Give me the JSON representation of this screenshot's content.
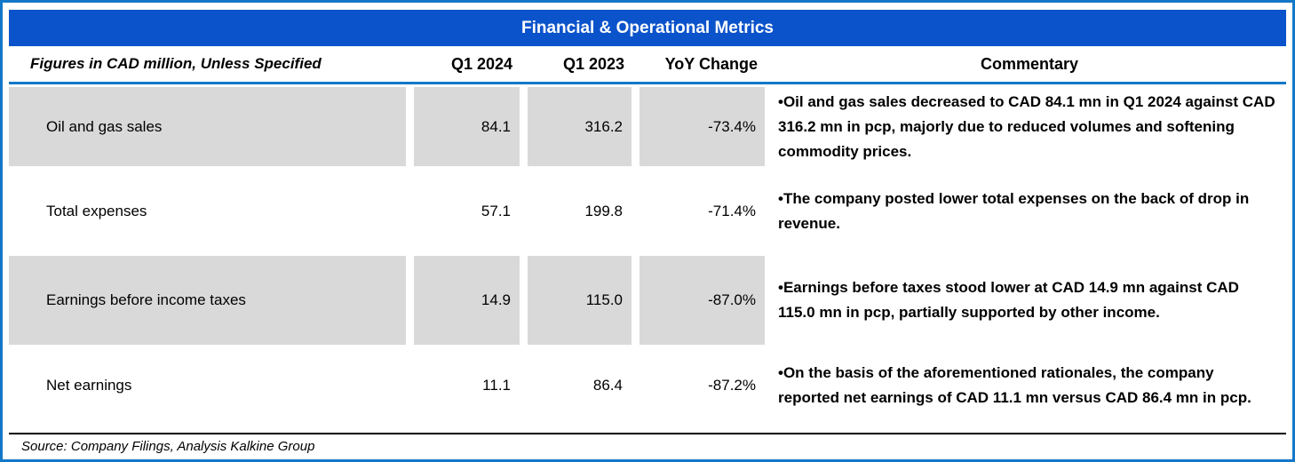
{
  "title": "Financial & Operational Metrics",
  "header": {
    "metric_label": "Figures in CAD million, Unless Specified",
    "col_q1_2024": "Q1 2024",
    "col_q1_2023": "Q1 2023",
    "col_yoy": "YoY Change",
    "col_commentary": "Commentary"
  },
  "rows": [
    {
      "metric": "Oil and gas sales",
      "q1_2024": "84.1",
      "q1_2023": "316.2",
      "yoy_change": "-73.4%",
      "commentary": "•Oil and gas sales decreased to CAD 84.1 mn in Q1 2024 against CAD 316.2 mn in pcp, majorly due to reduced volumes and softening commodity prices."
    },
    {
      "metric": "Total expenses",
      "q1_2024": "57.1",
      "q1_2023": "199.8",
      "yoy_change": "-71.4%",
      "commentary": "•The company posted lower total expenses on the back of drop in revenue."
    },
    {
      "metric": "Earnings before income taxes",
      "q1_2024": "14.9",
      "q1_2023": "115.0",
      "yoy_change": "-87.0%",
      "commentary": "•Earnings before taxes stood lower at CAD 14.9 mn against CAD 115.0 mn in pcp, partially supported by other income."
    },
    {
      "metric": "Net earnings",
      "q1_2024": "11.1",
      "q1_2023": "86.4",
      "yoy_change": "-87.2%",
      "commentary": "•On the basis of the aforementioned rationales, the company reported net earnings of CAD 11.1 mn versus CAD 86.4 mn in pcp."
    }
  ],
  "source": "Source: Company Filings, Analysis Kalkine Group",
  "colors": {
    "title_bar": "#0b53cb",
    "border_blue": "#1478c8",
    "row_shade": "#d9d9d9",
    "title_text": "#ffffff",
    "body_text": "#000000"
  }
}
